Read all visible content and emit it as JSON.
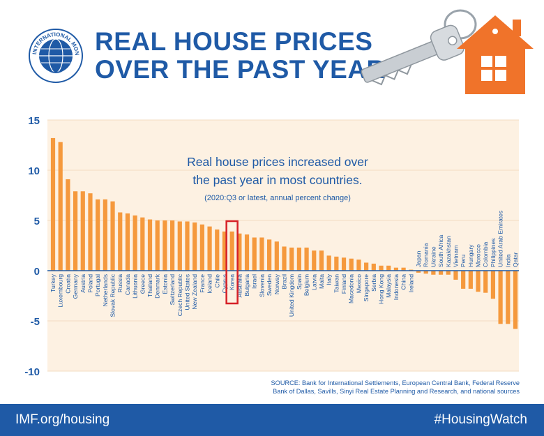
{
  "header": {
    "title_line1": "REAL HOUSE PRICES",
    "title_line2": "OVER THE PAST YEAR",
    "logo_text": "INTERNATIONAL MONETARY FUND"
  },
  "annotation": {
    "line1": "Real house prices increased over",
    "line2": "the past year in most countries.",
    "line3": "(2020:Q3 or latest, annual percent change)"
  },
  "source": {
    "line1": "SOURCE: Bank for International Settlements, European Central Bank, Federal Reserve",
    "line2": "Bank of Dallas, Savills, Sinyi Real Estate Planning and Research, and national sources"
  },
  "footer": {
    "left": "IMF.org/housing",
    "right": "#HousingWatch"
  },
  "colors": {
    "bar": "#f5993d",
    "plot_bg": "#fdf1e2",
    "title": "#1f5aa6",
    "axis": "#1f5aa6",
    "highlight": "#d62027",
    "footer_bg": "#1f5aa6"
  },
  "chart_data": {
    "type": "bar",
    "title": "",
    "xlabel": "",
    "ylabel": "",
    "ylim": [
      -10,
      15
    ],
    "yticks": [
      15,
      10,
      5,
      0,
      -5,
      -10
    ],
    "grid": true,
    "highlight": "Korea",
    "categories": [
      "Turkey",
      "Luxembourg",
      "Croatia",
      "Germany",
      "Austria",
      "Poland",
      "Portugal",
      "Netherlands",
      "Slovak Republic",
      "Russia",
      "Canada",
      "Lithuania",
      "Greece",
      "Thailand",
      "Denmark",
      "Estonia",
      "Switzerland",
      "Czech Republic",
      "United States",
      "New Zealand",
      "France",
      "Iceland",
      "Chile",
      "Cyprus",
      "Korea",
      "Australia",
      "Bulgaria",
      "Israel",
      "Slovenia",
      "Sweden",
      "Norway",
      "Brazil",
      "United Kingdom",
      "Spain",
      "Belgium",
      "Latvia",
      "Malta",
      "Italy",
      "Taiwan",
      "Finland",
      "Macedonia",
      "Mexico",
      "Singapore",
      "Serbia",
      "Hong Kong",
      "Malaysia",
      "Indonesia",
      "China",
      "Ireland",
      "Japan",
      "Romania",
      "Ukraine",
      "South Africa",
      "Kazakhstan",
      "Vietnam",
      "Peru",
      "Hungary",
      "Morocco",
      "Colombia",
      "Philippines",
      "United Arab Emirates",
      "India",
      "Qatar"
    ],
    "values": [
      13.2,
      12.8,
      9.1,
      7.9,
      7.9,
      7.7,
      7.1,
      7.1,
      6.9,
      5.8,
      5.7,
      5.5,
      5.3,
      5.1,
      5.0,
      5.0,
      5.0,
      4.9,
      4.9,
      4.8,
      4.6,
      4.4,
      4.1,
      3.9,
      3.9,
      3.7,
      3.6,
      3.3,
      3.3,
      3.1,
      2.9,
      2.4,
      2.3,
      2.3,
      2.3,
      2.0,
      2.0,
      1.5,
      1.4,
      1.3,
      1.2,
      1.1,
      0.8,
      0.7,
      0.5,
      0.5,
      0.3,
      0.3,
      0.1,
      -0.2,
      -0.3,
      -0.4,
      -0.4,
      -0.4,
      -0.9,
      -1.8,
      -1.8,
      -2.1,
      -2.2,
      -2.8,
      -5.3,
      -5.3,
      -5.8
    ]
  }
}
